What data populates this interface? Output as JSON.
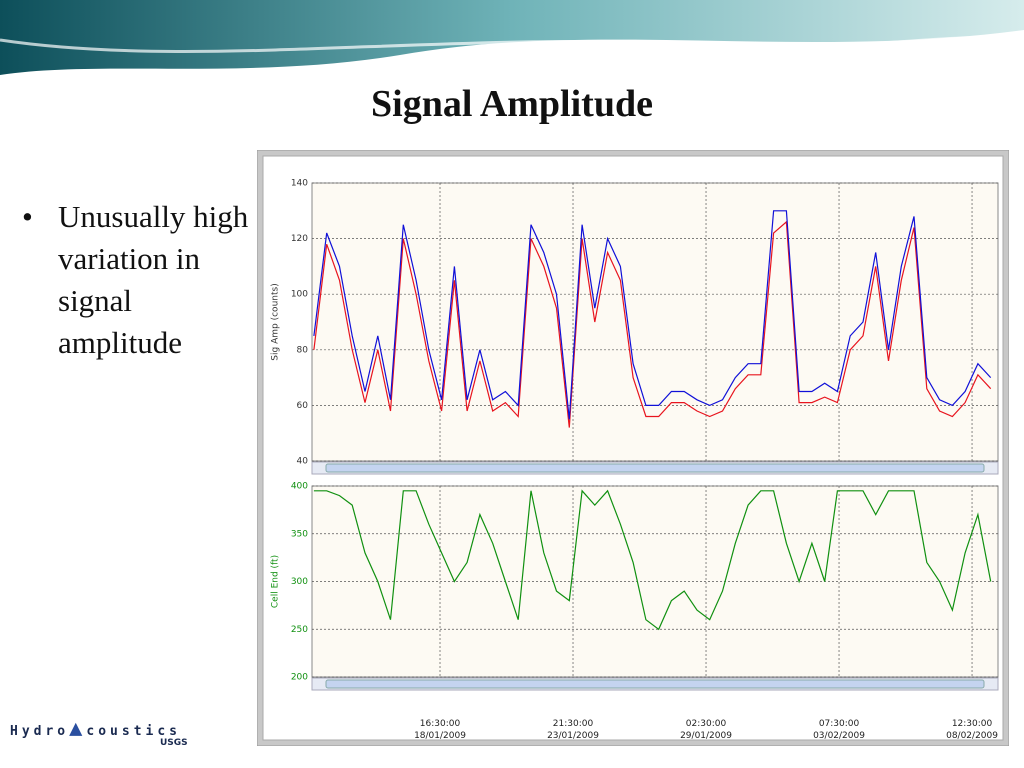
{
  "slide": {
    "title": "Signal Amplitude",
    "bullet": "Unusually high variation in signal amplitude",
    "logo": [
      "Hydro",
      "coustics"
    ],
    "logo_sub": "USGS"
  },
  "chart_data": [
    {
      "type": "line",
      "ylabel": "Sig Amp (counts)",
      "ylim": [
        40,
        140
      ],
      "yticks": [
        40,
        60,
        80,
        100,
        120,
        140
      ],
      "grid": true,
      "xlim": [
        "2009-01-13T16:12:00",
        "2009-02-09T12:54:00"
      ],
      "x": [
        "2009-01-13T18:00:00",
        "2009-01-14T06:00:00",
        "2009-01-14T18:00:00",
        "2009-01-15T06:00:00",
        "2009-01-15T18:00:00",
        "2009-01-16T06:00:00",
        "2009-01-16T18:00:00",
        "2009-01-17T06:00:00",
        "2009-01-17T18:00:00",
        "2009-01-18T06:00:00",
        "2009-01-18T18:00:00",
        "2009-01-19T06:00:00",
        "2009-01-19T18:00:00",
        "2009-01-20T06:00:00",
        "2009-01-20T18:00:00",
        "2009-01-21T06:00:00",
        "2009-01-21T18:00:00",
        "2009-01-22T06:00:00",
        "2009-01-22T18:00:00",
        "2009-01-23T06:00:00",
        "2009-01-23T18:00:00",
        "2009-01-24T06:00:00",
        "2009-01-24T18:00:00",
        "2009-01-25T06:00:00",
        "2009-01-25T18:00:00",
        "2009-01-26T06:00:00",
        "2009-01-26T18:00:00",
        "2009-01-27T06:00:00",
        "2009-01-27T18:00:00",
        "2009-01-28T06:00:00",
        "2009-01-28T18:00:00",
        "2009-01-29T06:00:00",
        "2009-01-29T18:00:00",
        "2009-01-30T06:00:00",
        "2009-01-30T18:00:00",
        "2009-01-31T06:00:00",
        "2009-01-31T18:00:00",
        "2009-02-01T06:00:00",
        "2009-02-01T18:00:00",
        "2009-02-02T06:00:00",
        "2009-02-02T18:00:00",
        "2009-02-03T06:00:00",
        "2009-02-03T18:00:00",
        "2009-02-04T06:00:00",
        "2009-02-04T18:00:00",
        "2009-02-05T06:00:00",
        "2009-02-05T18:00:00",
        "2009-02-06T06:00:00",
        "2009-02-06T18:00:00",
        "2009-02-07T06:00:00",
        "2009-02-07T18:00:00",
        "2009-02-08T06:00:00",
        "2009-02-08T18:00:00",
        "2009-02-09T06:00:00"
      ],
      "series": [
        {
          "color": "#e8141e",
          "values": [
            80,
            118,
            105,
            80,
            61,
            80,
            58,
            120,
            100,
            76,
            58,
            105,
            58,
            76,
            58,
            61,
            56,
            120,
            110,
            95,
            52,
            120,
            90,
            115,
            105,
            70,
            56,
            56,
            61,
            61,
            58,
            56,
            58,
            66,
            71,
            71,
            122,
            126,
            61,
            61,
            63,
            61,
            80,
            85,
            110,
            76,
            105,
            124,
            66,
            58,
            56,
            61,
            71,
            66
          ]
        },
        {
          "color": "#1010d8",
          "values": [
            85,
            122,
            110,
            85,
            65,
            85,
            62,
            125,
            105,
            80,
            62,
            110,
            62,
            80,
            62,
            65,
            60,
            125,
            115,
            100,
            55,
            125,
            95,
            120,
            110,
            75,
            60,
            60,
            65,
            65,
            62,
            60,
            62,
            70,
            75,
            75,
            130,
            130,
            65,
            65,
            68,
            65,
            85,
            90,
            115,
            80,
            110,
            128,
            70,
            62,
            60,
            65,
            75,
            70
          ]
        }
      ]
    },
    {
      "type": "line",
      "ylabel": "Cell End (ft)",
      "ylim": [
        200,
        400
      ],
      "yticks": [
        200,
        250,
        300,
        350,
        400
      ],
      "grid": true,
      "xlim": [
        "2009-01-13T16:12:00",
        "2009-02-09T12:54:00"
      ],
      "xticks": [
        {
          "value": "2009-01-18T16:30:00",
          "label": "16:30:00 18/01/2009"
        },
        {
          "value": "2009-01-23T21:30:00",
          "label": "21:30:00 23/01/2009"
        },
        {
          "value": "2009-01-29T02:30:00",
          "label": "02:30:00 29/01/2009"
        },
        {
          "value": "2009-02-03T07:30:00",
          "label": "07:30:00 03/02/2009"
        },
        {
          "value": "2009-02-08T12:30:00",
          "label": "12:30:00 08/02/2009"
        }
      ],
      "x": [
        "2009-01-13T18:00:00",
        "2009-01-14T06:00:00",
        "2009-01-14T18:00:00",
        "2009-01-15T06:00:00",
        "2009-01-15T18:00:00",
        "2009-01-16T06:00:00",
        "2009-01-16T18:00:00",
        "2009-01-17T06:00:00",
        "2009-01-17T18:00:00",
        "2009-01-18T06:00:00",
        "2009-01-18T18:00:00",
        "2009-01-19T06:00:00",
        "2009-01-19T18:00:00",
        "2009-01-20T06:00:00",
        "2009-01-20T18:00:00",
        "2009-01-21T06:00:00",
        "2009-01-21T18:00:00",
        "2009-01-22T06:00:00",
        "2009-01-22T18:00:00",
        "2009-01-23T06:00:00",
        "2009-01-23T18:00:00",
        "2009-01-24T06:00:00",
        "2009-01-24T18:00:00",
        "2009-01-25T06:00:00",
        "2009-01-25T18:00:00",
        "2009-01-26T06:00:00",
        "2009-01-26T18:00:00",
        "2009-01-27T06:00:00",
        "2009-01-27T18:00:00",
        "2009-01-28T06:00:00",
        "2009-01-28T18:00:00",
        "2009-01-29T06:00:00",
        "2009-01-29T18:00:00",
        "2009-01-30T06:00:00",
        "2009-01-30T18:00:00",
        "2009-01-31T06:00:00",
        "2009-01-31T18:00:00",
        "2009-02-01T06:00:00",
        "2009-02-01T18:00:00",
        "2009-02-02T06:00:00",
        "2009-02-02T18:00:00",
        "2009-02-03T06:00:00",
        "2009-02-03T18:00:00",
        "2009-02-04T06:00:00",
        "2009-02-04T18:00:00",
        "2009-02-05T06:00:00",
        "2009-02-05T18:00:00",
        "2009-02-06T06:00:00",
        "2009-02-06T18:00:00",
        "2009-02-07T06:00:00",
        "2009-02-07T18:00:00",
        "2009-02-08T06:00:00",
        "2009-02-08T18:00:00",
        "2009-02-09T06:00:00"
      ],
      "series": [
        {
          "color": "#109010",
          "values": [
            395,
            395,
            390,
            380,
            330,
            300,
            260,
            395,
            395,
            360,
            330,
            300,
            320,
            370,
            340,
            300,
            260,
            395,
            330,
            290,
            280,
            395,
            380,
            395,
            360,
            320,
            260,
            250,
            280,
            290,
            270,
            260,
            290,
            340,
            380,
            395,
            395,
            340,
            300,
            340,
            300,
            395,
            395,
            395,
            370,
            395,
            395,
            395,
            320,
            300,
            270,
            330,
            370,
            300
          ]
        }
      ]
    }
  ]
}
